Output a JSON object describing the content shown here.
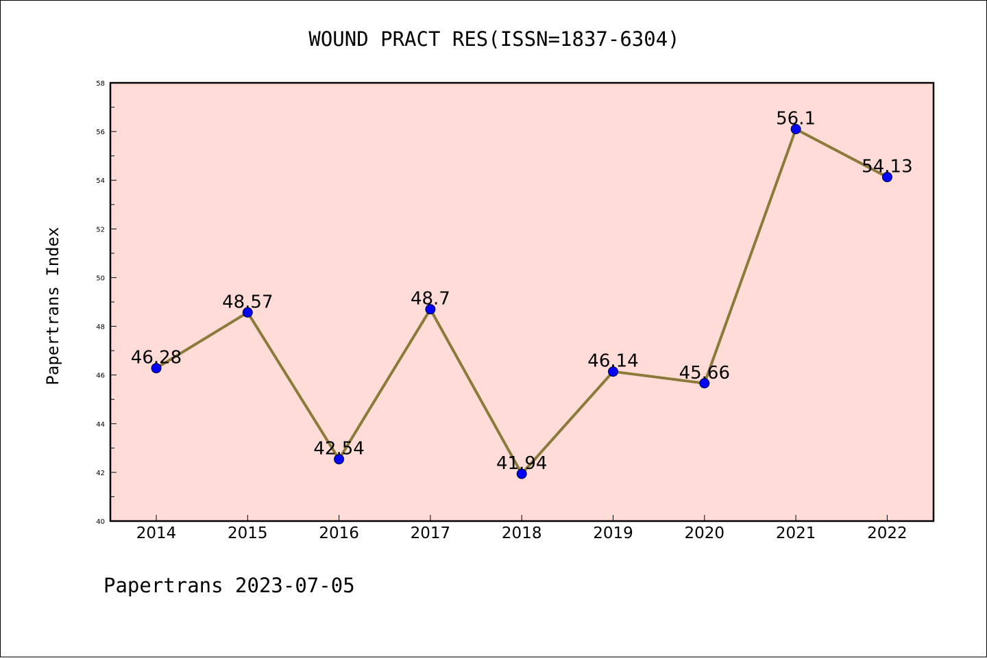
{
  "chart_data": {
    "type": "line",
    "title": "WOUND PRACT RES(ISSN=1837-6304)",
    "xlabel": "",
    "ylabel": "Papertrans Index",
    "categories": [
      "2014",
      "2015",
      "2016",
      "2017",
      "2018",
      "2019",
      "2020",
      "2021",
      "2022"
    ],
    "series": [
      {
        "values": [
          46.28,
          48.57,
          42.54,
          48.7,
          41.94,
          46.14,
          45.66,
          56.1,
          54.13
        ],
        "data_labels": [
          "46.28",
          "48.57",
          "42.54",
          "48.7",
          "41.94",
          "46.14",
          "45.66",
          "56.1",
          "54.13"
        ],
        "line_color": "#8b7a3a",
        "marker_color": "#0000ff"
      }
    ],
    "ylim": [
      40,
      58
    ],
    "yticks": [
      "40",
      "42",
      "44",
      "46",
      "48",
      "50",
      "52",
      "54",
      "56",
      "58"
    ],
    "plot_background": "#ffdcd8",
    "grid": false,
    "legend": "none"
  },
  "footer": "Papertrans 2023-07-05"
}
